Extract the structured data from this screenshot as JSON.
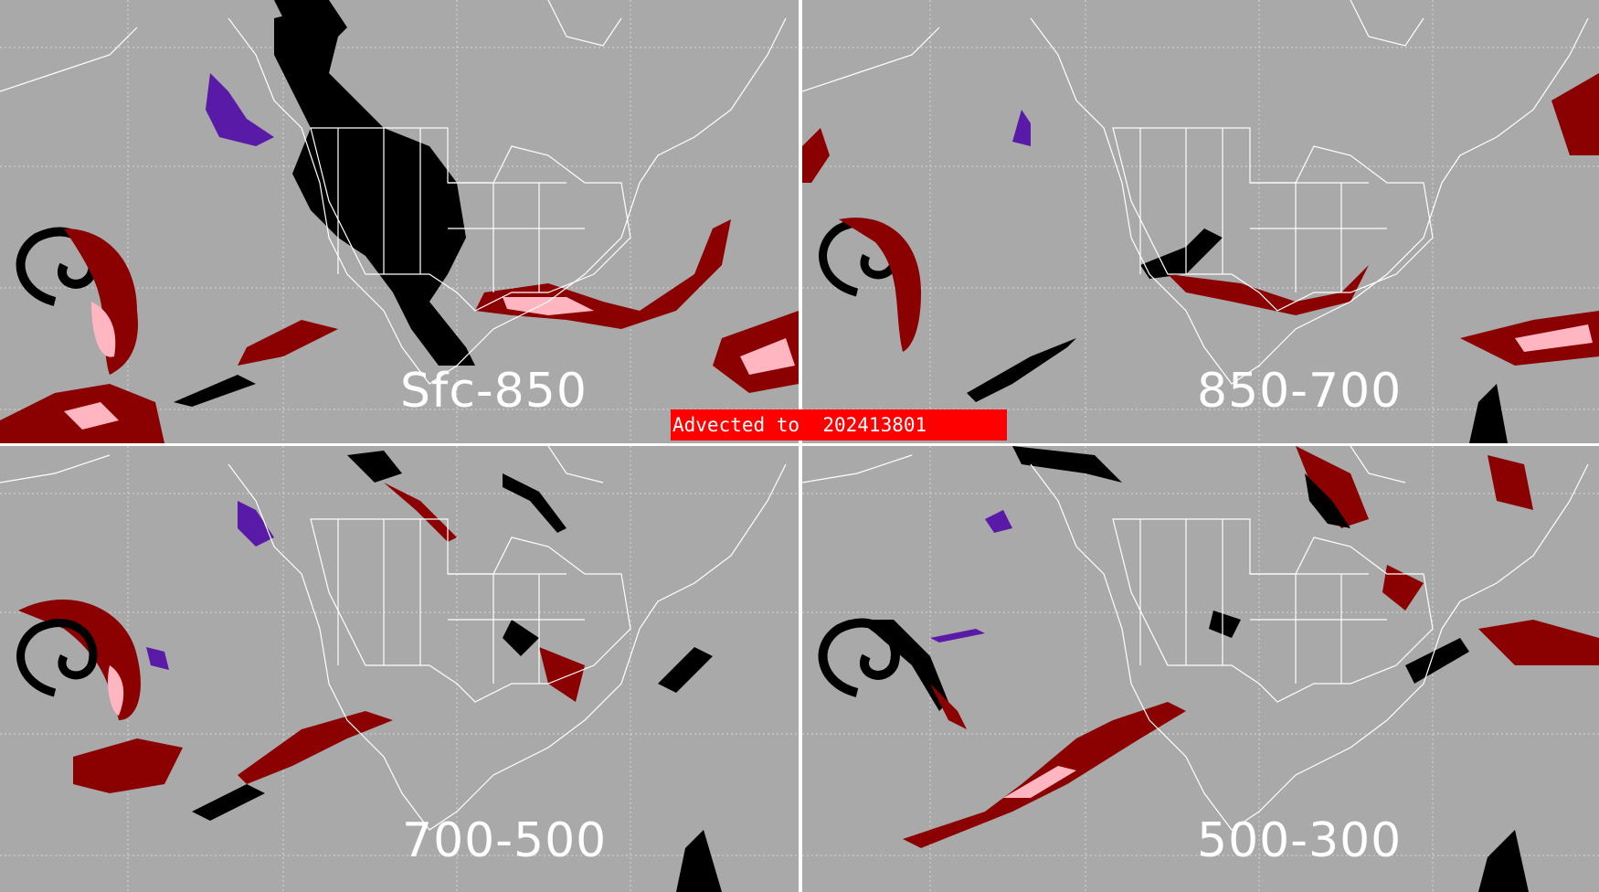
{
  "banner": {
    "text": "Advected to  202413801"
  },
  "panels": [
    {
      "id": "sfc-850",
      "label": "Sfc-850"
    },
    {
      "id": "850-700",
      "label": "850-700"
    },
    {
      "id": "700-500",
      "label": "700-500"
    },
    {
      "id": "500-300",
      "label": "500-300"
    }
  ],
  "colors": {
    "background": "#a9a9a9",
    "map_lines": "#ffffff",
    "dark_red": "#8b0000",
    "pink": "#ffb6c1",
    "black": "#000000",
    "purple": "#5a1aa8",
    "banner": "#ff0000"
  }
}
